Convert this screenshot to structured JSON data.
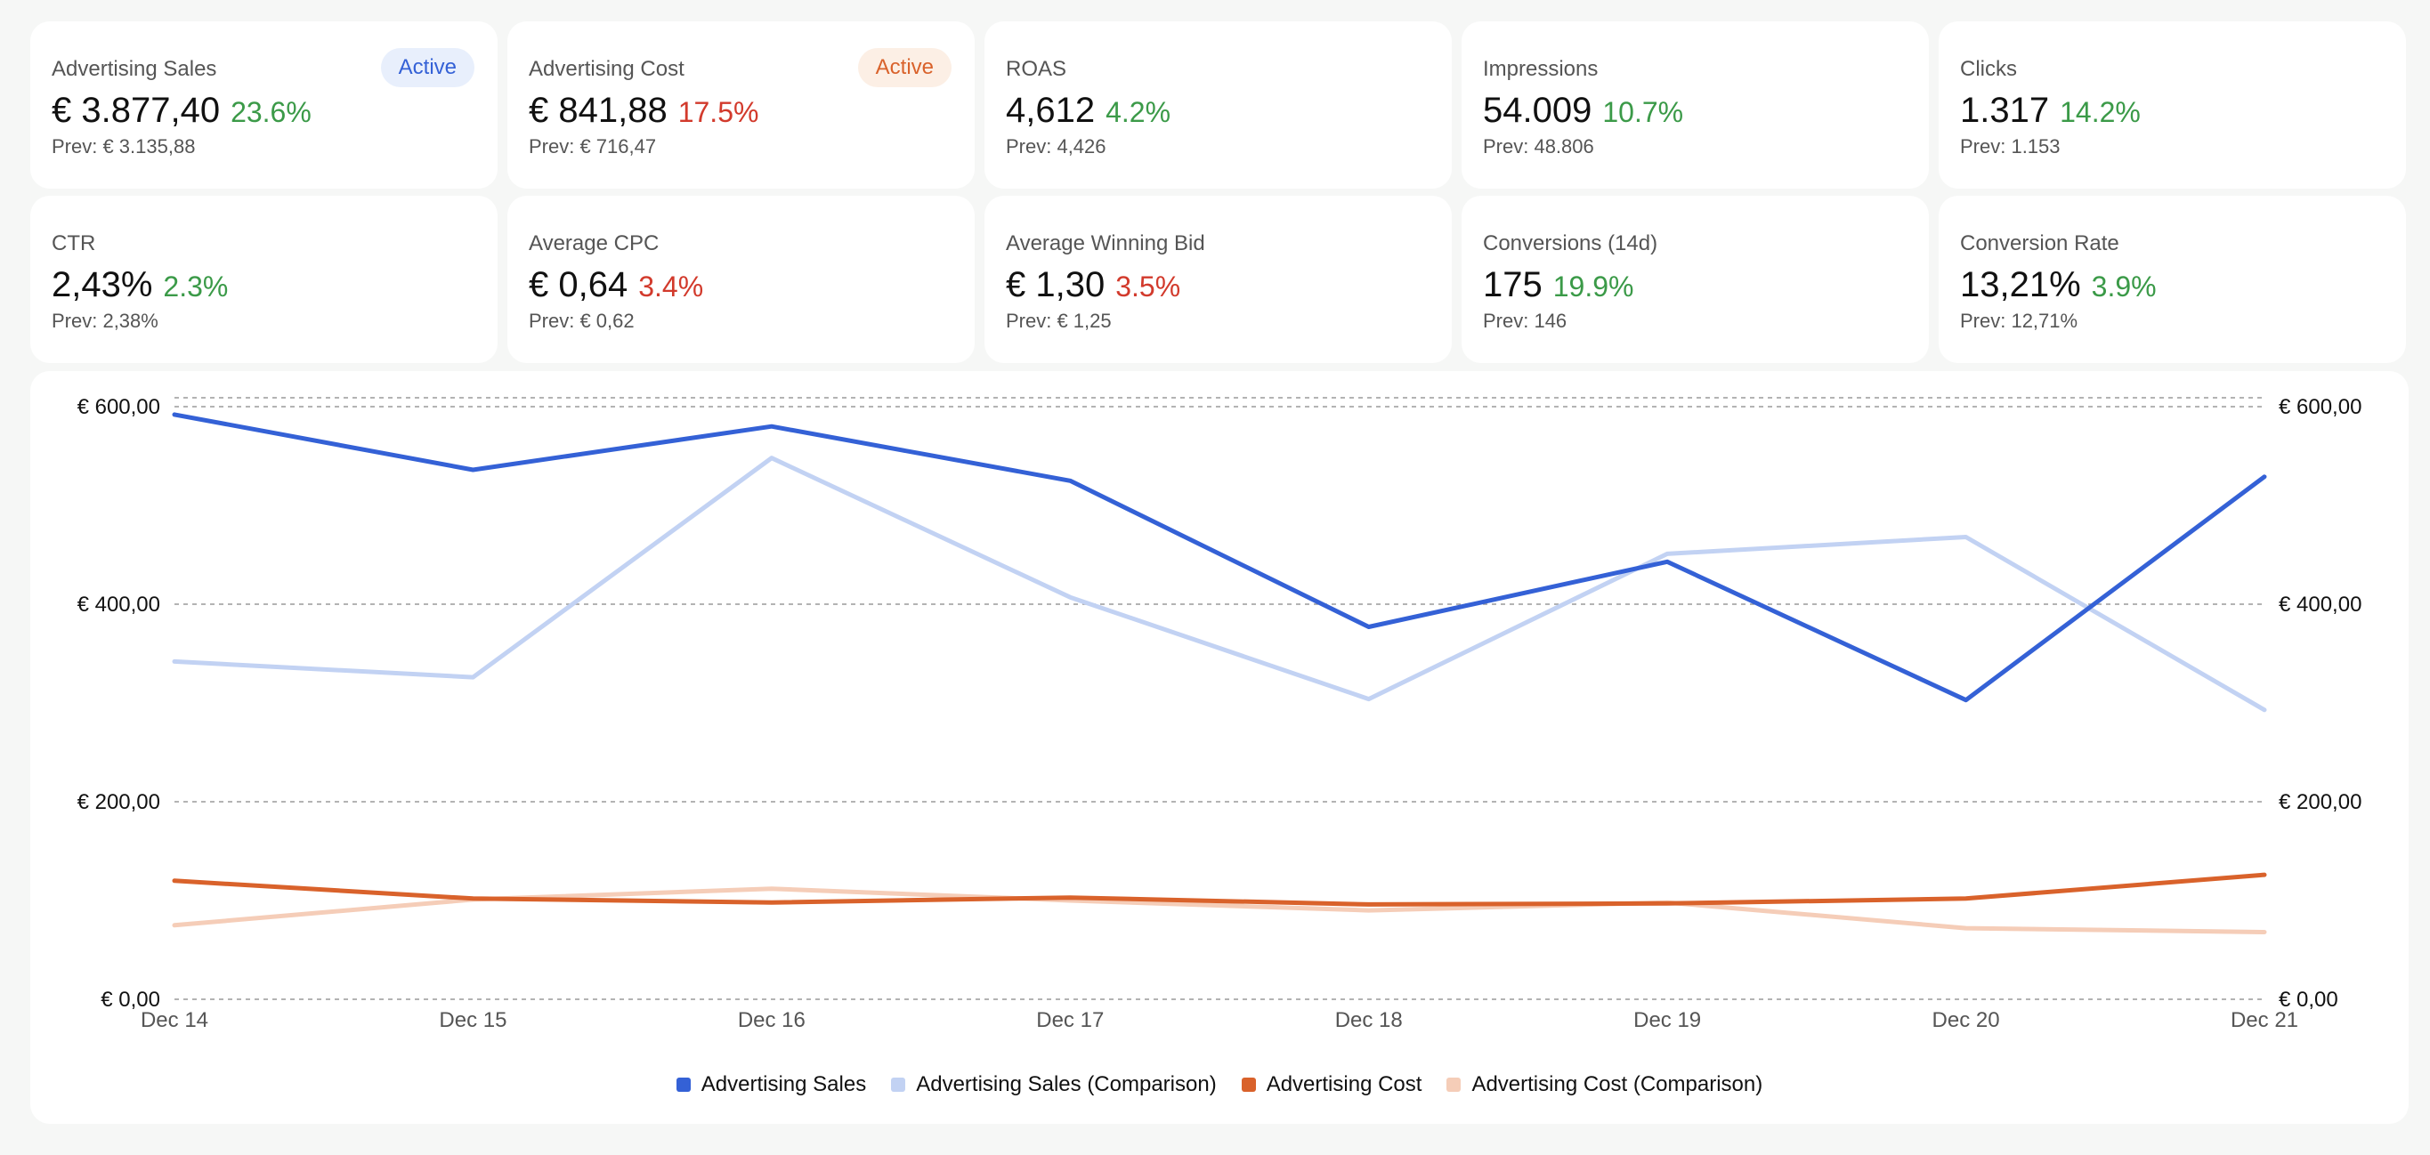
{
  "kpi_cards": [
    {
      "label": "Advertising Sales",
      "value": "€ 3.877,40",
      "delta": "23.6%",
      "trend": "up",
      "prev": "Prev: € 3.135,88",
      "badge": "Active",
      "badge_color": "blue"
    },
    {
      "label": "Advertising Cost",
      "value": "€ 841,88",
      "delta": "17.5%",
      "trend": "down",
      "prev": "Prev: € 716,47",
      "badge": "Active",
      "badge_color": "orange"
    },
    {
      "label": "ROAS",
      "value": "4,612",
      "delta": "4.2%",
      "trend": "up",
      "prev": "Prev: 4,426"
    },
    {
      "label": "Impressions",
      "value": "54.009",
      "delta": "10.7%",
      "trend": "up",
      "prev": "Prev: 48.806"
    },
    {
      "label": "Clicks",
      "value": "1.317",
      "delta": "14.2%",
      "trend": "up",
      "prev": "Prev: 1.153"
    },
    {
      "label": "CTR",
      "value": "2,43%",
      "delta": "2.3%",
      "trend": "up",
      "prev": "Prev: 2,38%"
    },
    {
      "label": "Average CPC",
      "value": "€ 0,64",
      "delta": "3.4%",
      "trend": "down",
      "prev": "Prev: € 0,62"
    },
    {
      "label": "Average Winning Bid",
      "value": "€ 1,30",
      "delta": "3.5%",
      "trend": "down",
      "prev": "Prev: € 1,25"
    },
    {
      "label": "Conversions (14d)",
      "value": "175",
      "delta": "19.9%",
      "trend": "up",
      "prev": "Prev: 146"
    },
    {
      "label": "Conversion Rate",
      "value": "13,21%",
      "delta": "3.9%",
      "trend": "up",
      "prev": "Prev: 12,71%"
    }
  ],
  "chart_data": {
    "type": "line",
    "x": [
      "Dec 14",
      "Dec 15",
      "Dec 16",
      "Dec 17",
      "Dec 18",
      "Dec 19",
      "Dec 20",
      "Dec 21"
    ],
    "ylim": [
      0,
      600
    ],
    "yticks": [
      0,
      200,
      400,
      600
    ],
    "ytick_labels": [
      "€ 0,00",
      "€ 200,00",
      "€ 400,00",
      "€ 600,00"
    ],
    "series": [
      {
        "name": "Advertising Cost (Comparison)",
        "color": "#f5cdb8",
        "values": [
          75,
          101,
          112,
          100,
          90,
          98,
          72,
          68
        ]
      },
      {
        "name": "Advertising Sales (Comparison)",
        "color": "#c2d2f3",
        "values": [
          342,
          326,
          548,
          407,
          304,
          451,
          468,
          293
        ]
      },
      {
        "name": "Advertising Cost",
        "color": "#d9622b",
        "values": [
          120,
          102,
          98,
          103,
          96,
          97,
          102,
          126
        ]
      },
      {
        "name": "Advertising Sales",
        "color": "#3461d6",
        "values": [
          592,
          536,
          580,
          525,
          377,
          443,
          303,
          529
        ]
      }
    ],
    "legend": [
      {
        "name": "Advertising Sales",
        "color": "#3461d6"
      },
      {
        "name": "Advertising Sales (Comparison)",
        "color": "#c2d2f3"
      },
      {
        "name": "Advertising Cost",
        "color": "#d9622b"
      },
      {
        "name": "Advertising Cost (Comparison)",
        "color": "#f5cdb8"
      }
    ],
    "legend_position": "bottom-center",
    "grid": true
  }
}
